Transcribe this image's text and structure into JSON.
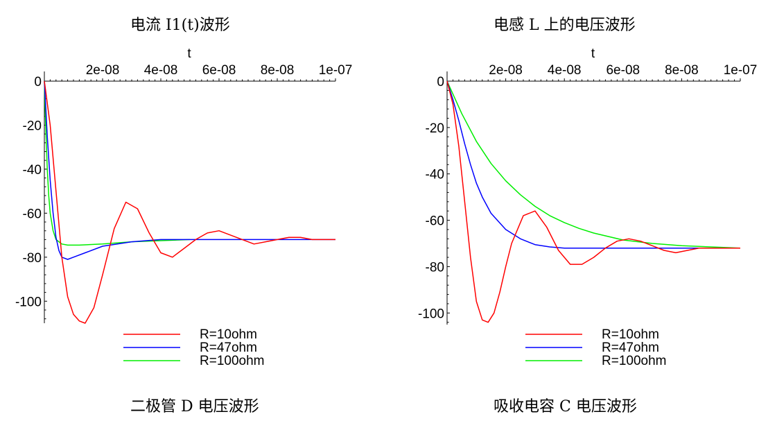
{
  "panels": [
    {
      "title": "电流 I1(t)波形",
      "caption": "二极管 D 电压波形",
      "chart_data": {
        "type": "line",
        "xlabel": "t",
        "ylabel": "",
        "xlim": [
          0,
          1e-07
        ],
        "ylim": [
          -110,
          0
        ],
        "x_ticks": [
          {
            "value": 2e-08,
            "label": "2e-08"
          },
          {
            "value": 4e-08,
            "label": "4e-08"
          },
          {
            "value": 6e-08,
            "label": "6e-08"
          },
          {
            "value": 8e-08,
            "label": "8e-08"
          },
          {
            "value": 1e-07,
            "label": "1e-07"
          }
        ],
        "y_ticks": [
          {
            "value": 0,
            "label": "0"
          },
          {
            "value": -20,
            "label": "-20"
          },
          {
            "value": -40,
            "label": "-40"
          },
          {
            "value": -60,
            "label": "-60"
          },
          {
            "value": -80,
            "label": "-80"
          },
          {
            "value": -100,
            "label": "-100"
          }
        ],
        "legend_position": "bottom",
        "series": [
          {
            "name": "R=10ohm",
            "color": "#ff0000",
            "x": [
              0,
              2e-09,
              4e-09,
              6e-09,
              8e-09,
              1e-08,
              1.2e-08,
              1.4e-08,
              1.7e-08,
              2e-08,
              2.4e-08,
              2.8e-08,
              3.2e-08,
              3.6e-08,
              4e-08,
              4.4e-08,
              4.8e-08,
              5.2e-08,
              5.6e-08,
              6e-08,
              6.4e-08,
              6.8e-08,
              7.2e-08,
              7.6e-08,
              8e-08,
              8.4e-08,
              8.8e-08,
              9.2e-08,
              9.6e-08,
              1e-07
            ],
            "y": [
              0,
              -20,
              -50,
              -80,
              -98,
              -106,
              -109,
              -110,
              -103,
              -88,
              -67,
              -55,
              -58,
              -69,
              -78,
              -80,
              -76,
              -72,
              -69,
              -68,
              -70,
              -72,
              -74,
              -73,
              -72,
              -71,
              -71,
              -72,
              -72,
              -72
            ]
          },
          {
            "name": "R=47ohm",
            "color": "#0000ff",
            "x": [
              0,
              1e-09,
              2e-09,
              3e-09,
              4e-09,
              5e-09,
              6e-09,
              8e-09,
              1e-08,
              1.4e-08,
              2e-08,
              3e-08,
              4e-08,
              5e-08,
              6e-08,
              8e-08,
              1e-07
            ],
            "y": [
              0,
              -25,
              -45,
              -60,
              -71,
              -77,
              -80,
              -81,
              -80,
              -78,
              -75,
              -73,
              -72,
              -72,
              -72,
              -72,
              -72
            ]
          },
          {
            "name": "R=100ohm",
            "color": "#00ee00",
            "x": [
              0,
              5e-10,
              1e-09,
              1.5e-09,
              2e-09,
              3e-09,
              4e-09,
              6e-09,
              8e-09,
              1.2e-08,
              2e-08,
              3e-08,
              4e-08,
              5e-08
            ],
            "y": [
              0,
              -22,
              -40,
              -52,
              -60,
              -68,
              -72,
              -74,
              -74.5,
              -74.5,
              -74,
              -73,
              -72.5,
              -72
            ]
          }
        ]
      }
    },
    {
      "title": "电感 L 上的电压波形",
      "caption": "吸收电容 C 电压波形",
      "chart_data": {
        "type": "line",
        "xlabel": "t",
        "ylabel": "",
        "xlim": [
          0,
          1e-07
        ],
        "ylim": [
          -105,
          0
        ],
        "x_ticks": [
          {
            "value": 2e-08,
            "label": "2e-08"
          },
          {
            "value": 4e-08,
            "label": "4e-08"
          },
          {
            "value": 6e-08,
            "label": "6e-08"
          },
          {
            "value": 8e-08,
            "label": "8e-08"
          },
          {
            "value": 1e-07,
            "label": "1e-07"
          }
        ],
        "y_ticks": [
          {
            "value": 0,
            "label": "0"
          },
          {
            "value": -20,
            "label": "-20"
          },
          {
            "value": -40,
            "label": "-40"
          },
          {
            "value": -60,
            "label": "-60"
          },
          {
            "value": -80,
            "label": "-80"
          },
          {
            "value": -100,
            "label": "-100"
          }
        ],
        "legend_position": "bottom",
        "series": [
          {
            "name": "R=10ohm",
            "color": "#ff0000",
            "x": [
              0,
              2e-09,
              4e-09,
              6e-09,
              8e-09,
              1e-08,
              1.2e-08,
              1.4e-08,
              1.6e-08,
              1.8e-08,
              2e-08,
              2.2e-08,
              2.6e-08,
              3e-08,
              3.4e-08,
              3.8e-08,
              4.2e-08,
              4.6e-08,
              5e-08,
              5.4e-08,
              5.8e-08,
              6.2e-08,
              6.6e-08,
              7e-08,
              7.4e-08,
              7.8e-08,
              8.2e-08,
              8.6e-08,
              9e-08,
              9.5e-08,
              1e-07
            ],
            "y": [
              0,
              -10,
              -28,
              -52,
              -76,
              -95,
              -103,
              -104,
              -100,
              -91,
              -80,
              -70,
              -58,
              -56,
              -63,
              -73,
              -79,
              -79,
              -76,
              -72,
              -69,
              -68,
              -69,
              -71,
              -73,
              -74,
              -73,
              -72,
              -72,
              -72,
              -72
            ]
          },
          {
            "name": "R=47ohm",
            "color": "#0000ff",
            "x": [
              0,
              2e-09,
              4e-09,
              6e-09,
              8e-09,
              1e-08,
              1.2e-08,
              1.5e-08,
              2e-08,
              2.5e-08,
              3e-08,
              3.5e-08,
              4e-08,
              5e-08,
              6e-08,
              7e-08,
              8e-08,
              1e-07
            ],
            "y": [
              0,
              -8,
              -17,
              -27,
              -36,
              -44,
              -50,
              -57,
              -64,
              -68,
              -70.5,
              -71.5,
              -72,
              -72,
              -72,
              -72,
              -72,
              -72
            ]
          },
          {
            "name": "R=100ohm",
            "color": "#00ee00",
            "x": [
              0,
              5e-09,
              1e-08,
              1.5e-08,
              2e-08,
              2.5e-08,
              3e-08,
              3.5e-08,
              4e-08,
              4.5e-08,
              5e-08,
              6e-08,
              7e-08,
              8e-08,
              9e-08,
              1e-07
            ],
            "y": [
              0,
              -14,
              -26,
              -35.5,
              -43,
              -49,
              -54,
              -58,
              -61,
              -63.5,
              -65.5,
              -68.5,
              -70,
              -71,
              -71.5,
              -72
            ]
          }
        ]
      }
    }
  ]
}
